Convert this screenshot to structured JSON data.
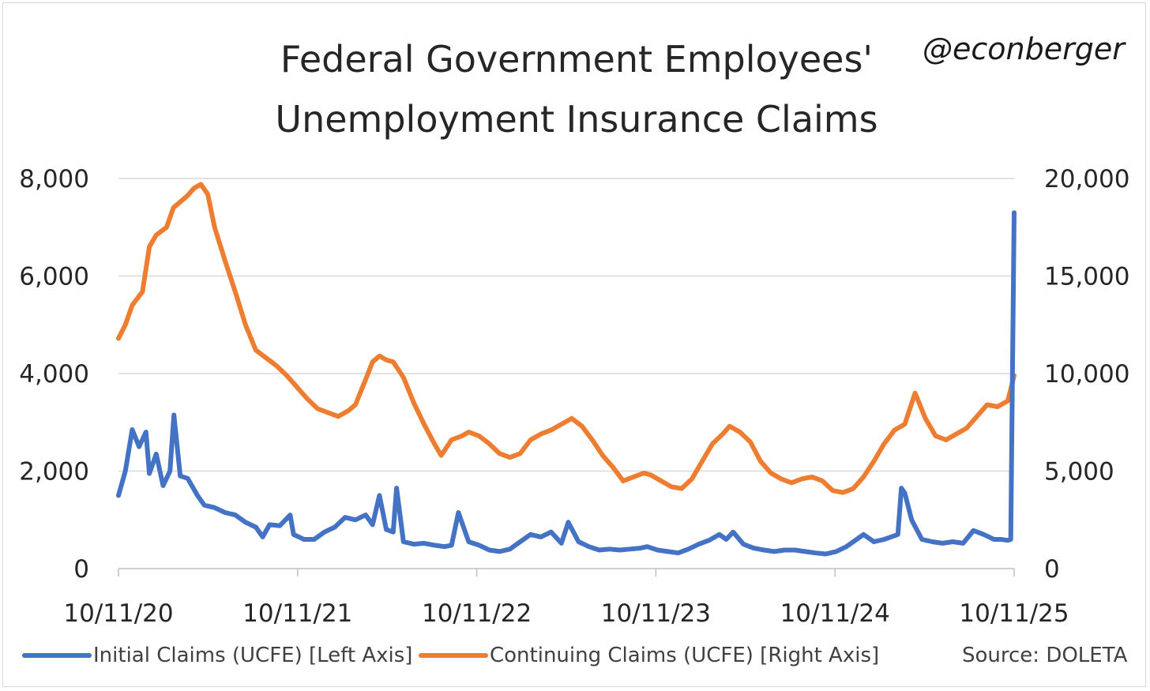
{
  "chart_data": {
    "type": "line",
    "title": "Federal Government Employees' Unemployment Insurance Claims",
    "title_lines": [
      "Federal Government Employees'",
      "Unemployment Insurance Claims"
    ],
    "watermark": "@econberger",
    "source": "Source: DOLETA",
    "x_range": [
      "2020-10-11",
      "2025-10-11"
    ],
    "x_tick_labels": [
      "10/11/20",
      "10/11/21",
      "10/11/22",
      "10/11/23",
      "10/11/24",
      "10/11/25"
    ],
    "y_left": {
      "range": [
        0,
        8000
      ],
      "tick_labels": [
        "0",
        "2,000",
        "4,000",
        "6,000",
        "8,000"
      ]
    },
    "y_right": {
      "range": [
        0,
        20000
      ],
      "tick_labels": [
        "0",
        "5,000",
        "10,000",
        "15,000",
        "20,000"
      ]
    },
    "grid": true,
    "legend_position": "bottom",
    "series": [
      {
        "name": "Initial Claims (UCFE) [Left Axis]",
        "axis": "left",
        "color": "#4472c4",
        "points": [
          [
            "2020-10-11",
            1500
          ],
          [
            "2020-10-25",
            2000
          ],
          [
            "2020-11-08",
            2850
          ],
          [
            "2020-11-22",
            2500
          ],
          [
            "2020-12-06",
            2800
          ],
          [
            "2020-12-13",
            1950
          ],
          [
            "2020-12-27",
            2350
          ],
          [
            "2021-01-10",
            1700
          ],
          [
            "2021-01-24",
            2000
          ],
          [
            "2021-02-01",
            3150
          ],
          [
            "2021-02-14",
            1900
          ],
          [
            "2021-03-01",
            1850
          ],
          [
            "2021-03-21",
            1500
          ],
          [
            "2021-04-04",
            1300
          ],
          [
            "2021-04-25",
            1250
          ],
          [
            "2021-05-16",
            1150
          ],
          [
            "2021-06-06",
            1100
          ],
          [
            "2021-06-27",
            950
          ],
          [
            "2021-07-18",
            850
          ],
          [
            "2021-08-01",
            650
          ],
          [
            "2021-08-15",
            900
          ],
          [
            "2021-09-05",
            880
          ],
          [
            "2021-09-26",
            1100
          ],
          [
            "2021-10-03",
            700
          ],
          [
            "2021-10-24",
            600
          ],
          [
            "2021-11-14",
            600
          ],
          [
            "2021-12-05",
            750
          ],
          [
            "2021-12-26",
            850
          ],
          [
            "2022-01-16",
            1050
          ],
          [
            "2022-02-06",
            1000
          ],
          [
            "2022-02-27",
            1100
          ],
          [
            "2022-03-13",
            900
          ],
          [
            "2022-03-27",
            1500
          ],
          [
            "2022-04-10",
            800
          ],
          [
            "2022-04-24",
            750
          ],
          [
            "2022-05-01",
            1650
          ],
          [
            "2022-05-15",
            550
          ],
          [
            "2022-06-05",
            500
          ],
          [
            "2022-06-26",
            520
          ],
          [
            "2022-07-17",
            480
          ],
          [
            "2022-08-07",
            450
          ],
          [
            "2022-08-21",
            480
          ],
          [
            "2022-09-04",
            1150
          ],
          [
            "2022-09-25",
            550
          ],
          [
            "2022-10-16",
            480
          ],
          [
            "2022-11-06",
            380
          ],
          [
            "2022-11-27",
            350
          ],
          [
            "2022-12-18",
            400
          ],
          [
            "2023-01-08",
            550
          ],
          [
            "2023-01-29",
            700
          ],
          [
            "2023-02-19",
            650
          ],
          [
            "2023-03-12",
            750
          ],
          [
            "2023-04-02",
            520
          ],
          [
            "2023-04-16",
            950
          ],
          [
            "2023-05-07",
            550
          ],
          [
            "2023-05-28",
            450
          ],
          [
            "2023-06-18",
            380
          ],
          [
            "2023-07-09",
            400
          ],
          [
            "2023-07-30",
            380
          ],
          [
            "2023-08-20",
            400
          ],
          [
            "2023-09-10",
            420
          ],
          [
            "2023-09-24",
            450
          ],
          [
            "2023-10-15",
            380
          ],
          [
            "2023-11-05",
            350
          ],
          [
            "2023-11-26",
            320
          ],
          [
            "2023-12-17",
            400
          ],
          [
            "2024-01-07",
            500
          ],
          [
            "2024-01-28",
            580
          ],
          [
            "2024-02-18",
            700
          ],
          [
            "2024-03-03",
            600
          ],
          [
            "2024-03-17",
            750
          ],
          [
            "2024-04-07",
            500
          ],
          [
            "2024-04-28",
            420
          ],
          [
            "2024-05-19",
            380
          ],
          [
            "2024-06-09",
            350
          ],
          [
            "2024-06-30",
            380
          ],
          [
            "2024-07-21",
            380
          ],
          [
            "2024-08-11",
            350
          ],
          [
            "2024-09-01",
            320
          ],
          [
            "2024-09-22",
            300
          ],
          [
            "2024-10-13",
            350
          ],
          [
            "2024-11-03",
            450
          ],
          [
            "2024-11-24",
            600
          ],
          [
            "2024-12-08",
            700
          ],
          [
            "2024-12-29",
            550
          ],
          [
            "2025-01-19",
            600
          ],
          [
            "2025-02-02",
            650
          ],
          [
            "2025-02-16",
            700
          ],
          [
            "2025-02-23",
            1650
          ],
          [
            "2025-03-02",
            1550
          ],
          [
            "2025-03-16",
            1000
          ],
          [
            "2025-04-06",
            600
          ],
          [
            "2025-04-27",
            550
          ],
          [
            "2025-05-18",
            520
          ],
          [
            "2025-06-08",
            550
          ],
          [
            "2025-06-29",
            520
          ],
          [
            "2025-07-20",
            780
          ],
          [
            "2025-08-10",
            700
          ],
          [
            "2025-08-31",
            600
          ],
          [
            "2025-09-14",
            600
          ],
          [
            "2025-09-28",
            580
          ],
          [
            "2025-10-04",
            600
          ],
          [
            "2025-10-11",
            7300
          ]
        ]
      },
      {
        "name": "Continuing Claims (UCFE) [Right Axis]",
        "axis": "right",
        "color": "#ed7d31",
        "points": [
          [
            "2020-10-11",
            11800
          ],
          [
            "2020-10-25",
            12500
          ],
          [
            "2020-11-08",
            13500
          ],
          [
            "2020-11-29",
            14200
          ],
          [
            "2020-12-13",
            16500
          ],
          [
            "2020-12-27",
            17100
          ],
          [
            "2021-01-17",
            17500
          ],
          [
            "2021-01-31",
            18500
          ],
          [
            "2021-02-14",
            18800
          ],
          [
            "2021-02-28",
            19100
          ],
          [
            "2021-03-14",
            19500
          ],
          [
            "2021-03-28",
            19700
          ],
          [
            "2021-04-11",
            19200
          ],
          [
            "2021-04-25",
            17500
          ],
          [
            "2021-05-16",
            15800
          ],
          [
            "2021-06-06",
            14200
          ],
          [
            "2021-06-27",
            12500
          ],
          [
            "2021-07-18",
            11200
          ],
          [
            "2021-08-08",
            10800
          ],
          [
            "2021-08-29",
            10400
          ],
          [
            "2021-09-19",
            9900
          ],
          [
            "2021-10-10",
            9300
          ],
          [
            "2021-10-31",
            8700
          ],
          [
            "2021-11-21",
            8200
          ],
          [
            "2021-12-12",
            8000
          ],
          [
            "2022-01-02",
            7800
          ],
          [
            "2022-01-23",
            8100
          ],
          [
            "2022-02-06",
            8400
          ],
          [
            "2022-02-27",
            9700
          ],
          [
            "2022-03-13",
            10600
          ],
          [
            "2022-03-27",
            10900
          ],
          [
            "2022-04-10",
            10700
          ],
          [
            "2022-04-24",
            10600
          ],
          [
            "2022-05-15",
            9800
          ],
          [
            "2022-06-05",
            8500
          ],
          [
            "2022-06-26",
            7400
          ],
          [
            "2022-07-17",
            6400
          ],
          [
            "2022-07-31",
            5800
          ],
          [
            "2022-08-21",
            6600
          ],
          [
            "2022-09-11",
            6800
          ],
          [
            "2022-09-25",
            7000
          ],
          [
            "2022-10-16",
            6800
          ],
          [
            "2022-11-06",
            6400
          ],
          [
            "2022-11-27",
            5900
          ],
          [
            "2022-12-18",
            5700
          ],
          [
            "2023-01-08",
            5900
          ],
          [
            "2023-01-29",
            6600
          ],
          [
            "2023-02-19",
            6900
          ],
          [
            "2023-03-12",
            7100
          ],
          [
            "2023-04-02",
            7400
          ],
          [
            "2023-04-23",
            7700
          ],
          [
            "2023-05-14",
            7300
          ],
          [
            "2023-06-04",
            6600
          ],
          [
            "2023-06-25",
            5800
          ],
          [
            "2023-07-16",
            5200
          ],
          [
            "2023-08-06",
            4500
          ],
          [
            "2023-08-27",
            4700
          ],
          [
            "2023-09-17",
            4900
          ],
          [
            "2023-10-01",
            4800
          ],
          [
            "2023-10-22",
            4500
          ],
          [
            "2023-11-12",
            4200
          ],
          [
            "2023-12-03",
            4100
          ],
          [
            "2023-12-24",
            4600
          ],
          [
            "2024-01-14",
            5500
          ],
          [
            "2024-02-04",
            6400
          ],
          [
            "2024-02-25",
            6900
          ],
          [
            "2024-03-10",
            7300
          ],
          [
            "2024-03-31",
            7000
          ],
          [
            "2024-04-21",
            6500
          ],
          [
            "2024-05-12",
            5500
          ],
          [
            "2024-06-02",
            4900
          ],
          [
            "2024-06-23",
            4600
          ],
          [
            "2024-07-14",
            4400
          ],
          [
            "2024-08-04",
            4600
          ],
          [
            "2024-08-25",
            4700
          ],
          [
            "2024-09-15",
            4500
          ],
          [
            "2024-10-06",
            4000
          ],
          [
            "2024-10-27",
            3900
          ],
          [
            "2024-11-17",
            4100
          ],
          [
            "2024-12-08",
            4700
          ],
          [
            "2024-12-29",
            5500
          ],
          [
            "2025-01-19",
            6400
          ],
          [
            "2025-02-09",
            7100
          ],
          [
            "2025-03-02",
            7400
          ],
          [
            "2025-03-23",
            9000
          ],
          [
            "2025-04-13",
            7700
          ],
          [
            "2025-05-04",
            6800
          ],
          [
            "2025-05-25",
            6600
          ],
          [
            "2025-06-15",
            6900
          ],
          [
            "2025-07-06",
            7200
          ],
          [
            "2025-07-27",
            7800
          ],
          [
            "2025-08-17",
            8400
          ],
          [
            "2025-09-07",
            8300
          ],
          [
            "2025-09-28",
            8600
          ],
          [
            "2025-10-11",
            9900
          ]
        ]
      }
    ]
  }
}
